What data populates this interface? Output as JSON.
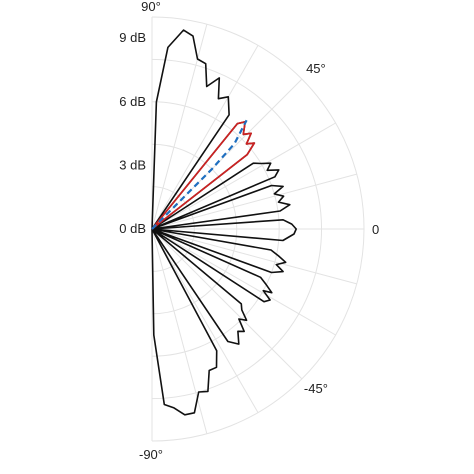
{
  "chart_data": {
    "type": "polar-line",
    "angle_unit": "degrees",
    "radial_unit": "dB",
    "angle_range": [
      -90,
      90
    ],
    "radial_range": [
      0,
      10
    ],
    "radial_ticks": [
      {
        "value": 0,
        "label": "0 dB"
      },
      {
        "value": 3,
        "label": "3 dB"
      },
      {
        "value": 6,
        "label": "6 dB"
      },
      {
        "value": 9,
        "label": "9 dB"
      }
    ],
    "angle_ticks": [
      {
        "value": 90,
        "label": "90°"
      },
      {
        "value": 45,
        "label": "45°"
      },
      {
        "value": 0,
        "label": "0"
      },
      {
        "value": -45,
        "label": "-45°"
      },
      {
        "value": -90,
        "label": "-90°"
      }
    ],
    "grid": true,
    "colors": {
      "black": "#111111",
      "red": "#cc2222",
      "blue": "#1f6fc0",
      "grid": "#e3e3e3"
    },
    "series": [
      {
        "color": "black",
        "style": "solid",
        "points": [
          [
            -90,
            0
          ],
          [
            -89,
            5.0
          ],
          [
            -86,
            8.3
          ],
          [
            -83,
            8.5
          ],
          [
            -80,
            8.9
          ],
          [
            -77,
            8.9
          ],
          [
            -74,
            8.0
          ],
          [
            -71,
            8.1
          ],
          [
            -68,
            7.2
          ],
          [
            -65,
            7.2
          ],
          [
            -62,
            6.5
          ],
          [
            -58,
            0
          ],
          [
            -56,
            6.4
          ],
          [
            -53,
            6.8
          ],
          [
            -50,
            6.3
          ],
          [
            -48,
            6.5
          ],
          [
            -46,
            5.9
          ],
          [
            -44,
            6.2
          ],
          [
            -42,
            5.7
          ],
          [
            -40,
            5.5
          ],
          [
            -35,
            0
          ],
          [
            -33,
            6.3
          ],
          [
            -31,
            6.5
          ],
          [
            -29,
            6.0
          ],
          [
            -28,
            6.4
          ],
          [
            -26,
            6.0
          ],
          [
            -24,
            5.6
          ],
          [
            -21,
            0
          ],
          [
            -20,
            6.0
          ],
          [
            -18,
            6.5
          ],
          [
            -16,
            6.1
          ],
          [
            -14,
            6.5
          ],
          [
            -12,
            6.1
          ],
          [
            -10,
            5.7
          ],
          [
            -7,
            0
          ],
          [
            -5,
            6.2
          ],
          [
            -2,
            6.7
          ],
          [
            0,
            6.8
          ],
          [
            2,
            6.6
          ],
          [
            4,
            6.2
          ],
          [
            6,
            0
          ],
          [
            8,
            6.1
          ],
          [
            10,
            6.6
          ],
          [
            12,
            6.1
          ],
          [
            14,
            6.4
          ],
          [
            16,
            6.0
          ],
          [
            18,
            6.5
          ],
          [
            20,
            6.0
          ],
          [
            21,
            0
          ],
          [
            23,
            6.3
          ],
          [
            25,
            6.6
          ],
          [
            27,
            6.1
          ],
          [
            29,
            6.4
          ],
          [
            31,
            6.0
          ],
          [
            33,
            5.7
          ],
          [
            36,
            0
          ],
          [
            38,
            5.7
          ],
          [
            40,
            6.3
          ],
          [
            42,
            6.0
          ],
          [
            44,
            6.5
          ],
          [
            46,
            6.2
          ],
          [
            49,
            6.7
          ],
          [
            51,
            6.4
          ],
          [
            53,
            0
          ],
          [
            56,
            6.5
          ],
          [
            60,
            7.2
          ],
          [
            63,
            6.9
          ],
          [
            66,
            7.8
          ],
          [
            69,
            7.2
          ],
          [
            72,
            8.2
          ],
          [
            75,
            8.3
          ],
          [
            78,
            9.3
          ],
          [
            81,
            9.5
          ],
          [
            85,
            8.6
          ],
          [
            88,
            6.0
          ],
          [
            90,
            0
          ]
        ]
      },
      {
        "color": "red",
        "style": "solid",
        "points": [
          [
            36,
            0
          ],
          [
            38,
            5.7
          ],
          [
            40,
            6.3
          ],
          [
            42,
            6.0
          ],
          [
            44,
            6.5
          ],
          [
            46,
            6.2
          ],
          [
            49,
            6.7
          ],
          [
            51,
            6.4
          ],
          [
            53,
            0
          ]
        ]
      },
      {
        "color": "blue",
        "style": "dashed",
        "points": [
          [
            45,
            0
          ],
          [
            45,
            4.0
          ],
          [
            46,
            5.6
          ],
          [
            49,
            6.8
          ]
        ]
      }
    ]
  }
}
